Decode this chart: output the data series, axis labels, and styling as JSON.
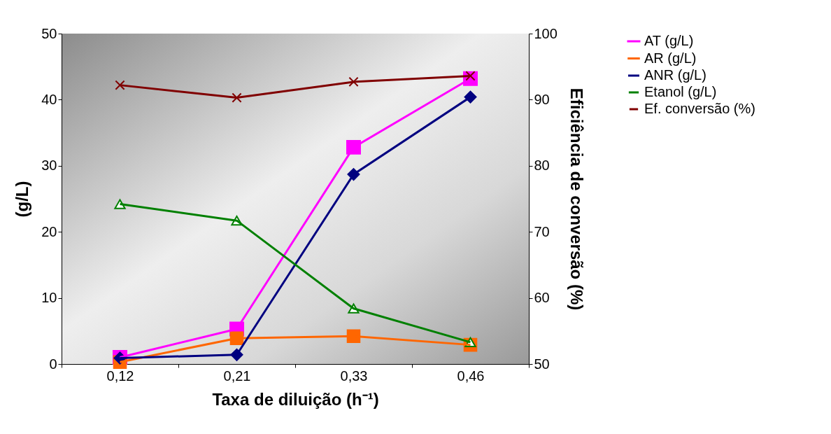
{
  "chart_data": {
    "type": "line",
    "xlabel": "Taxa de diluição (h⁻¹)",
    "ylabel": "(g/L)",
    "y2label": "Eficiência de conversão (%)",
    "categories": [
      "0,12",
      "0,21",
      "0,33",
      "0,46"
    ],
    "series": [
      {
        "name": "AT (g/L)",
        "color": "#ff00ff",
        "marker": "square",
        "values": [
          1.0,
          5.3,
          32.8,
          43.2
        ]
      },
      {
        "name": "AR (g/L)",
        "color": "#ff6600",
        "marker": "square",
        "values": [
          0.3,
          3.9,
          4.2,
          2.9
        ]
      },
      {
        "name": "ANR (g/L)",
        "color": "#000080",
        "marker": "diamond",
        "values": [
          0.9,
          1.4,
          28.7,
          40.4
        ]
      },
      {
        "name": "Etanol (g/L)",
        "color": "#008000",
        "marker": "triangle",
        "values": [
          24.2,
          21.7,
          8.4,
          3.3
        ]
      },
      {
        "name": "Ef. conversão (%)",
        "color": "#800000",
        "marker": "cross",
        "axis": "y2",
        "values": [
          92.2,
          90.3,
          92.7,
          93.6
        ]
      }
    ],
    "ylim": [
      0,
      50
    ],
    "yticks": [
      0,
      10,
      20,
      30,
      40,
      50
    ],
    "y2lim": [
      50,
      100
    ],
    "y2ticks": [
      50,
      60,
      70,
      80,
      90,
      100
    ],
    "legend": "top right",
    "grid": false
  }
}
